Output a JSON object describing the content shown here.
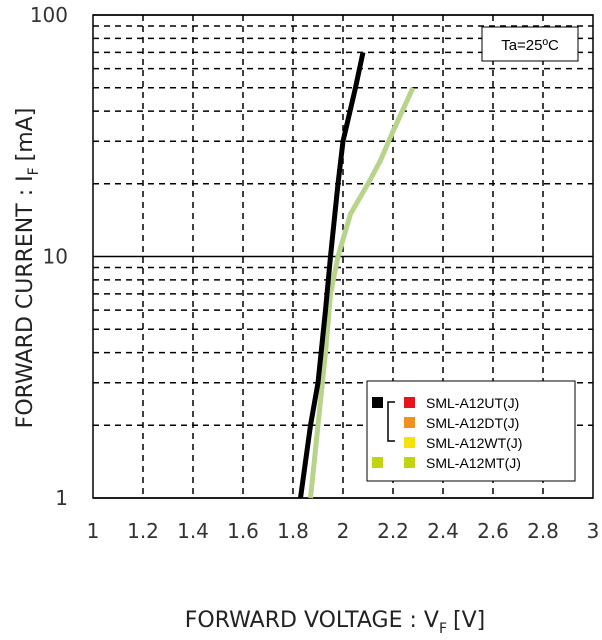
{
  "chart_data": {
    "type": "line",
    "xlabel": "FORWARD VOLTAGE : V",
    "xlabel_sub": "F",
    "xlabel_unit": "[V]",
    "ylabel": "FORWARD CURRENT : I",
    "ylabel_sub": "F",
    "ylabel_unit": "[mA]",
    "xlim": [
      1,
      3
    ],
    "ylim": [
      1,
      100
    ],
    "yscale": "log",
    "x_ticks": [
      "1",
      "1.2",
      "1.4",
      "1.6",
      "1.8",
      "2",
      "2.2",
      "2.4",
      "2.6",
      "2.8",
      "3"
    ],
    "y_ticks": [
      "1",
      "10",
      "100"
    ],
    "grid": "dashed",
    "annotation": "Ta=25ºC",
    "legend": {
      "placement": "bottom-right",
      "entries": [
        {
          "label": "SML-A12UT(J)",
          "color": "#e8141c"
        },
        {
          "label": "SML-A12DT(J)",
          "color": "#f0901e"
        },
        {
          "label": "SML-A12WT(J)",
          "color": "#f5e20c"
        },
        {
          "label": "SML-A12MT(J)",
          "color": "#c2d40c"
        }
      ],
      "group_swatch_color": "#000000"
    },
    "series": [
      {
        "color": "#000000",
        "points": [
          [
            1.83,
            1
          ],
          [
            1.87,
            2
          ],
          [
            1.9,
            3
          ],
          [
            1.93,
            6
          ],
          [
            1.95,
            10
          ],
          [
            1.98,
            20
          ],
          [
            2.0,
            30
          ],
          [
            2.05,
            50
          ],
          [
            2.08,
            70
          ]
        ]
      },
      {
        "color": "#b8d48a",
        "points": [
          [
            1.87,
            1
          ],
          [
            1.9,
            2
          ],
          [
            1.93,
            4
          ],
          [
            1.95,
            7
          ],
          [
            1.98,
            10
          ],
          [
            2.03,
            15
          ],
          [
            2.1,
            20
          ],
          [
            2.15,
            25
          ],
          [
            2.2,
            33
          ],
          [
            2.28,
            50
          ]
        ]
      }
    ]
  }
}
